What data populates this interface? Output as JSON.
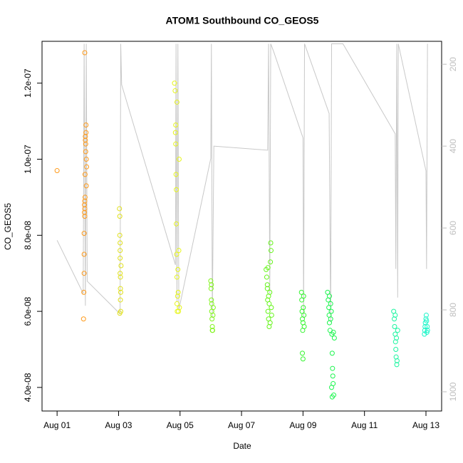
{
  "chart_data": {
    "type": "scatter",
    "title": "ATOM1 Southbound CO_GEOS5",
    "x_label": "Date",
    "y_label": "CO_GEOS5",
    "xlim": [
      -0.49,
      12.51
    ],
    "ylim": [
      3.38e-08,
      1.31e-07
    ],
    "y2lim": [
      1047,
      144
    ],
    "xticks": [
      {
        "value": 0,
        "label": "Aug 01"
      },
      {
        "value": 2,
        "label": "Aug 03"
      },
      {
        "value": 4,
        "label": "Aug 05"
      },
      {
        "value": 6,
        "label": "Aug 07"
      },
      {
        "value": 8,
        "label": "Aug 09"
      },
      {
        "value": 10,
        "label": "Aug 11"
      },
      {
        "value": 12,
        "label": "Aug 13"
      }
    ],
    "yticks": [
      {
        "value": 4e-08,
        "label": "4.0e-08"
      },
      {
        "value": 6e-08,
        "label": "6.0e-08"
      },
      {
        "value": 8e-08,
        "label": "8.0e-08"
      },
      {
        "value": 1e-07,
        "label": "1.0e-07"
      },
      {
        "value": 1.2e-07,
        "label": "1.2e-07"
      }
    ],
    "y2ticks": [
      200,
      400,
      600,
      800,
      1000
    ],
    "series": [
      {
        "type": "line",
        "axis": "y2",
        "color": "#c8c8c8",
        "x": [
          0,
          0.85,
          0.88,
          0.92,
          0.95,
          0.98,
          2.05,
          2.07,
          2.1,
          3.85,
          3.87,
          3.9,
          3.93,
          3.96,
          5.0,
          5.02,
          5.05,
          5.1,
          6.85,
          6.88,
          6.92,
          6.95,
          7.05,
          8.0,
          8.02,
          8.05,
          8.85,
          8.9,
          8.93,
          9.3,
          11.0,
          11.02,
          11.05,
          11.08,
          11.1,
          12.0,
          12.02,
          12.05
        ],
        "values": [
          630,
          760,
          150,
          790,
          150,
          730,
          810,
          150,
          250,
          690,
          150,
          780,
          150,
          800,
          430,
          150,
          820,
          400,
          410,
          150,
          760,
          150,
          170,
          380,
          820,
          150,
          320,
          830,
          150,
          150,
          370,
          700,
          150,
          770,
          150,
          460,
          700,
          150
        ]
      },
      {
        "color": "#ff9a1a",
        "x": [
          0,
          0.86,
          0.87,
          0.88,
          0.88,
          0.89,
          0.89,
          0.9,
          0.9,
          0.9,
          0.91,
          0.91,
          0.92,
          0.92,
          0.93,
          0.93,
          0.94,
          0.94,
          0.95,
          0.95,
          0.96,
          0.9,
          0.88
        ],
        "values": [
          9.7e-08,
          5.8e-08,
          6.5e-08,
          7e-08,
          7.5e-08,
          8.6e-08,
          8.8e-08,
          8.7e-08,
          8.9e-08,
          8.5e-08,
          9.6e-08,
          9e-08,
          1.05e-07,
          1.06e-07,
          1.04e-07,
          1.02e-07,
          1.07e-07,
          1.09e-07,
          1e-07,
          9.3e-08,
          9.8e-08,
          1.28e-07,
          8.05e-08
        ]
      },
      {
        "color": "#e0e01a",
        "x": [
          2.03,
          2.04,
          2.04,
          2.05,
          2.05,
          2.05,
          2.06,
          2.06,
          2.06,
          2.07,
          2.07,
          2.08,
          2.04,
          2.05
        ],
        "values": [
          8.7e-08,
          8.5e-08,
          8e-08,
          7.8e-08,
          7.4e-08,
          7e-08,
          6.9e-08,
          6.6e-08,
          6.3e-08,
          6e-08,
          6.5e-08,
          7.2e-08,
          5.95e-08,
          7.6e-08
        ]
      },
      {
        "color": "#e6f51a",
        "x": [
          3.82,
          3.84,
          3.85,
          3.86,
          3.87,
          3.88,
          3.88,
          3.89,
          3.9,
          3.9,
          3.91,
          3.92,
          3.93,
          3.94,
          3.95,
          3.96,
          3.97,
          3.98,
          3.86,
          3.9
        ],
        "values": [
          1.2e-07,
          1.18e-07,
          1.07e-07,
          1.04e-07,
          9.6e-08,
          9.2e-08,
          8.3e-08,
          7.5e-08,
          6.9e-08,
          6.2e-08,
          6e-08,
          6.4e-08,
          7.1e-08,
          6.5e-08,
          6e-08,
          7.6e-08,
          1e-07,
          6.1e-08,
          1.09e-07,
          1.15e-07
        ]
      },
      {
        "color": "#80f51a",
        "x": [
          5.0,
          5.01,
          5.02,
          5.03,
          5.04,
          5.05,
          5.06,
          5.07,
          5.08,
          5.02,
          5.05,
          5.03
        ],
        "values": [
          6.8e-08,
          6.6e-08,
          6.3e-08,
          6e-08,
          5.8e-08,
          5.6e-08,
          5.5e-08,
          5.9e-08,
          6.1e-08,
          6.7e-08,
          5.5e-08,
          6.2e-08
        ]
      },
      {
        "color": "#66f51a",
        "x": [
          6.8,
          6.82,
          6.84,
          6.85,
          6.86,
          6.88,
          6.9,
          6.9,
          6.92,
          6.94,
          6.95,
          6.96,
          6.98,
          6.97,
          6.84,
          6.88,
          6.93,
          6.86
        ],
        "values": [
          7.1e-08,
          6.9e-08,
          6.6e-08,
          6.3e-08,
          6e-08,
          5.8e-08,
          5.6e-08,
          6.2e-08,
          6.5e-08,
          7.3e-08,
          7.8e-08,
          7.6e-08,
          5.9e-08,
          6.1e-08,
          6.7e-08,
          6.4e-08,
          5.7e-08,
          7.15e-08
        ]
      },
      {
        "color": "#33f52e",
        "x": [
          7.95,
          7.96,
          7.97,
          7.98,
          7.99,
          8.0,
          8.01,
          8.02,
          8.03,
          7.98,
          8.0,
          8.04
        ],
        "values": [
          6.5e-08,
          6.3e-08,
          6e-08,
          5.8e-08,
          5.5e-08,
          5.7e-08,
          6.1e-08,
          6.4e-08,
          5.9e-08,
          4.9e-08,
          4.75e-08,
          5.6e-08
        ]
      },
      {
        "color": "#1af54d",
        "x": [
          8.8,
          8.82,
          8.84,
          8.85,
          8.86,
          8.88,
          8.9,
          8.92,
          8.94,
          8.95,
          8.96,
          8.98,
          9.0,
          9.02,
          8.93,
          8.95,
          8.97,
          8.86,
          8.9,
          8.99
        ],
        "values": [
          6.5e-08,
          6.3e-08,
          6.1e-08,
          5.9e-08,
          5.7e-08,
          5.5e-08,
          6.2e-08,
          6e-08,
          5.4e-08,
          4.9e-08,
          4.5e-08,
          4.1e-08,
          3.8e-08,
          5.3e-08,
          4e-08,
          3.75e-08,
          4.3e-08,
          6.4e-08,
          5.8e-08,
          5.45e-08
        ]
      },
      {
        "color": "#1af5a0",
        "x": [
          10.95,
          10.97,
          10.98,
          11.0,
          11.01,
          11.02,
          11.03,
          11.05,
          11.06,
          11.08,
          11.0,
          11.04
        ],
        "values": [
          6e-08,
          5.8e-08,
          5.6e-08,
          5.4e-08,
          5.2e-08,
          5e-08,
          4.8e-08,
          4.6e-08,
          4.7e-08,
          5.5e-08,
          5.9e-08,
          5.3e-08
        ]
      },
      {
        "color": "#1af5c8",
        "x": [
          11.95,
          11.96,
          11.97,
          11.98,
          12.0,
          12.01,
          12.02,
          12.03,
          12.04,
          12.05
        ],
        "values": [
          5.4e-08,
          5.5e-08,
          5.6e-08,
          5.7e-08,
          5.8e-08,
          5.9e-08,
          5.75e-08,
          5.45e-08,
          5.6e-08,
          5.5e-08
        ]
      }
    ]
  }
}
